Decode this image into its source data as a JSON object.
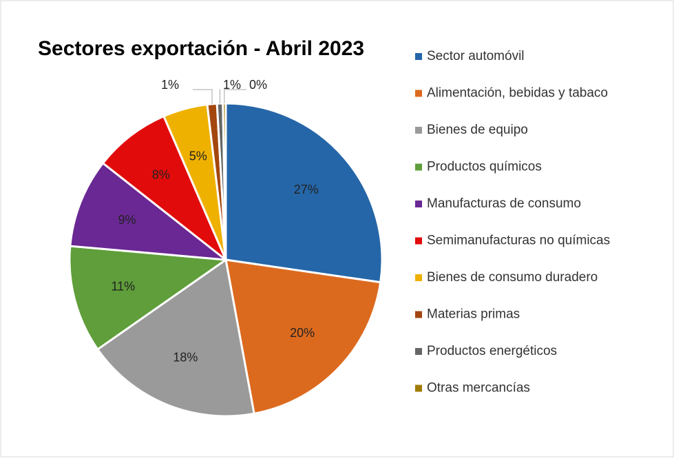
{
  "chart_data": {
    "type": "pie",
    "title": "Sectores exportación - Abril 2023",
    "categories": [
      "Sector automóvil",
      "Alimentación, bebidas y tabaco",
      "Bienes de equipo",
      "Productos químicos",
      "Manufacturas de consumo",
      "Semimanufacturas no químicas",
      "Bienes de consumo duradero",
      "Materias primas",
      "Productos energéticos",
      "Otras mercancías"
    ],
    "values": [
      27.3,
      19.8,
      18.2,
      11.1,
      9.2,
      7.9,
      4.6,
      1.0,
      0.6,
      0.3
    ],
    "value_labels": [
      "27%",
      "20%",
      "18%",
      "11%",
      "9%",
      "8%",
      "5%",
      "1%",
      "1%",
      "0%"
    ],
    "colors": [
      "#2566a8",
      "#dc6a1e",
      "#9a9a9a",
      "#5f9e3a",
      "#6a2894",
      "#e20b0b",
      "#efb100",
      "#a3470f",
      "#666666",
      "#a07c06"
    ],
    "legend": "right"
  }
}
